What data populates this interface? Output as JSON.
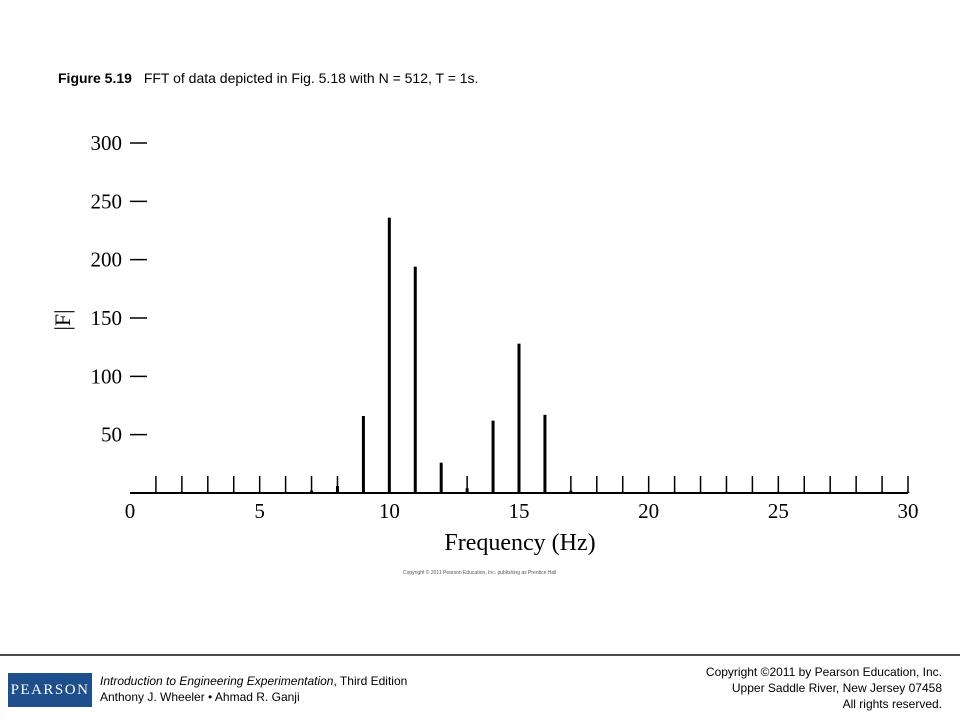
{
  "caption": {
    "label": "Figure 5.19",
    "text": "FFT of data depicted in Fig. 5.18 with N = 512, T = 1s."
  },
  "chart_data": {
    "type": "bar",
    "xlabel": "Frequency (Hz)",
    "ylabel": "|F|",
    "xlim": [
      0,
      30
    ],
    "ylim": [
      0,
      300
    ],
    "xticks": [
      0,
      5,
      10,
      15,
      20,
      25,
      30
    ],
    "yticks": [
      50,
      100,
      150,
      200,
      250,
      300
    ],
    "grid": false,
    "x": [
      0,
      1,
      2,
      3,
      4,
      5,
      6,
      7,
      8,
      9,
      10,
      11,
      12,
      13,
      14,
      15,
      16,
      17,
      18,
      19,
      20,
      21,
      22,
      23,
      24,
      25,
      26,
      27,
      28,
      29,
      30
    ],
    "values": [
      0,
      0.5,
      1,
      1,
      1,
      1,
      1,
      2,
      6,
      66,
      236,
      194,
      26,
      4,
      62,
      128,
      67,
      2,
      1,
      1,
      1,
      1,
      1,
      1,
      1,
      1,
      1,
      1,
      1,
      1,
      1
    ]
  },
  "credit": "Copyright © 2011 Pearson Education, Inc. publishing as Prentice Hall",
  "footer": {
    "logo": "PEARSON",
    "book_title": "Introduction to Engineering Experimentation",
    "edition": ", Third Edition",
    "authors": "Anthony J. Wheeler • Ahmad R. Ganji",
    "copyright_line1": "Copyright ©2011 by Pearson Education, Inc.",
    "copyright_line2": "Upper Saddle River, New Jersey 07458",
    "copyright_line3": "All rights reserved."
  }
}
